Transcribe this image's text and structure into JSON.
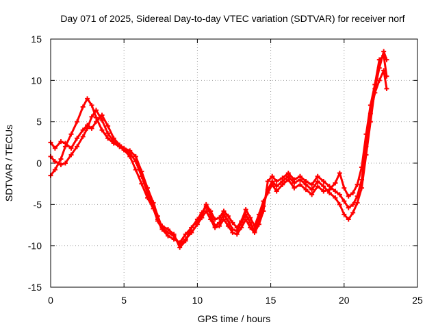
{
  "chart_data": {
    "type": "scatter",
    "title": "Day 071 of 2025, Sidereal Day-to-day VTEC variation (SDTVAR) for receiver norf",
    "xlabel": "GPS time / hours",
    "ylabel": "SDTVAR / TECUs",
    "xlim": [
      0,
      25
    ],
    "ylim": [
      -15,
      15
    ],
    "xticks": [
      0,
      5,
      10,
      15,
      20,
      25
    ],
    "yticks": [
      -15,
      -10,
      -5,
      0,
      5,
      10,
      15
    ],
    "grid": true,
    "legend": "none",
    "marker": "plus",
    "color": "#ff0000",
    "series": [
      {
        "name": "trace-1",
        "x": [
          0.0,
          0.3,
          0.7,
          1.0,
          1.4,
          1.8,
          2.2,
          2.5,
          2.8,
          3.1,
          3.5,
          3.9,
          4.3,
          4.7,
          5.0,
          5.4,
          5.8,
          6.2,
          6.6,
          7.0,
          7.3,
          7.6,
          8.0,
          8.4,
          8.8,
          9.2,
          9.6,
          10.0,
          10.3,
          10.6,
          10.9,
          11.2,
          11.5,
          11.8,
          12.1,
          12.4,
          12.7,
          13.0,
          13.3,
          13.6,
          13.9,
          14.2,
          14.5,
          14.8,
          15.1,
          15.4,
          15.8,
          16.2,
          16.6,
          17.0,
          17.4,
          17.8,
          18.2,
          18.6,
          19.0,
          19.4,
          19.7,
          20.0,
          20.3,
          20.6,
          20.9,
          21.2,
          21.5,
          21.8,
          22.1,
          22.4,
          22.7,
          22.9
        ],
        "y": [
          -1.5,
          -0.8,
          0.5,
          2.0,
          3.5,
          5.0,
          6.8,
          7.8,
          7.0,
          5.5,
          4.0,
          3.0,
          2.4,
          2.0,
          1.6,
          0.8,
          -0.8,
          -2.5,
          -4.2,
          -5.5,
          -7.0,
          -8.0,
          -8.8,
          -9.2,
          -9.6,
          -8.6,
          -7.8,
          -6.8,
          -6.0,
          -5.2,
          -6.2,
          -7.6,
          -7.2,
          -6.2,
          -7.0,
          -8.0,
          -8.2,
          -7.2,
          -6.2,
          -7.2,
          -8.2,
          -6.8,
          -5.2,
          -3.2,
          -2.2,
          -2.8,
          -2.2,
          -1.6,
          -2.4,
          -2.0,
          -2.6,
          -3.2,
          -2.2,
          -2.8,
          -3.6,
          -4.2,
          -5.0,
          -6.2,
          -6.8,
          -6.0,
          -4.8,
          -3.0,
          1.0,
          5.0,
          9.0,
          11.5,
          13.5,
          12.5
        ]
      },
      {
        "name": "trace-2",
        "x": [
          0.0,
          0.3,
          0.7,
          1.0,
          1.4,
          1.8,
          2.2,
          2.5,
          2.8,
          3.1,
          3.5,
          3.9,
          4.3,
          4.7,
          5.0,
          5.4,
          5.8,
          6.2,
          6.6,
          7.0,
          7.3,
          7.6,
          8.0,
          8.4,
          8.8,
          9.2,
          9.6,
          10.0,
          10.3,
          10.6,
          10.9,
          11.2,
          11.5,
          11.8,
          12.1,
          12.4,
          12.7,
          13.0,
          13.3,
          13.6,
          13.9,
          14.2,
          14.5,
          14.8,
          15.1,
          15.4,
          15.8,
          16.2,
          16.6,
          17.0,
          17.4,
          17.8,
          18.2,
          18.6,
          19.0,
          19.4,
          19.7,
          20.0,
          20.3,
          20.6,
          20.9,
          21.2,
          21.5,
          21.8,
          22.1,
          22.4,
          22.7,
          22.9
        ],
        "y": [
          2.5,
          1.8,
          2.6,
          2.4,
          1.8,
          3.0,
          4.0,
          4.6,
          4.2,
          5.0,
          5.8,
          4.5,
          3.0,
          2.2,
          1.8,
          1.5,
          0.8,
          -1.0,
          -3.0,
          -4.8,
          -6.4,
          -7.8,
          -8.4,
          -8.8,
          -9.8,
          -9.2,
          -8.4,
          -7.4,
          -6.6,
          -5.8,
          -6.8,
          -7.8,
          -7.6,
          -6.8,
          -7.6,
          -8.4,
          -8.6,
          -7.8,
          -6.8,
          -7.8,
          -8.4,
          -7.4,
          -5.8,
          -2.2,
          -1.6,
          -2.2,
          -1.8,
          -1.2,
          -2.0,
          -1.6,
          -2.2,
          -2.6,
          -1.6,
          -2.2,
          -2.8,
          -3.4,
          -3.8,
          -4.6,
          -5.4,
          -5.0,
          -4.0,
          -2.0,
          2.0,
          6.0,
          8.5,
          10.0,
          11.2,
          9.0
        ]
      },
      {
        "name": "trace-3",
        "x": [
          0.0,
          0.3,
          0.7,
          1.0,
          1.4,
          1.8,
          2.2,
          2.5,
          2.8,
          3.1,
          3.5,
          3.9,
          4.3,
          4.7,
          5.0,
          5.4,
          5.8,
          6.2,
          6.6,
          7.0,
          7.3,
          7.6,
          8.0,
          8.4,
          8.8,
          9.2,
          9.6,
          10.0,
          10.3,
          10.6,
          10.9,
          11.2,
          11.5,
          11.8,
          12.1,
          12.4,
          12.7,
          13.0,
          13.3,
          13.6,
          13.9,
          14.2,
          14.5,
          14.8,
          15.1,
          15.4,
          15.8,
          16.2,
          16.6,
          17.0,
          17.4,
          17.8,
          18.2,
          18.6,
          19.0,
          19.4,
          19.7,
          20.0,
          20.3,
          20.6,
          20.9,
          21.2,
          21.5,
          21.8,
          22.1,
          22.4,
          22.7,
          22.9
        ],
        "y": [
          0.8,
          0.2,
          -0.2,
          0.0,
          1.0,
          2.0,
          3.2,
          4.2,
          5.6,
          6.4,
          5.2,
          3.6,
          2.6,
          2.0,
          1.6,
          1.2,
          0.2,
          -1.6,
          -3.6,
          -5.2,
          -6.8,
          -7.6,
          -8.0,
          -8.6,
          -10.2,
          -9.4,
          -7.8,
          -7.0,
          -6.2,
          -5.0,
          -5.8,
          -6.8,
          -6.6,
          -5.8,
          -6.4,
          -7.2,
          -7.8,
          -7.0,
          -5.6,
          -6.6,
          -7.6,
          -6.2,
          -4.6,
          -3.6,
          -2.6,
          -3.4,
          -2.6,
          -2.0,
          -3.0,
          -2.6,
          -3.2,
          -3.8,
          -2.8,
          -3.4,
          -3.2,
          -2.4,
          -1.2,
          -3.0,
          -4.0,
          -3.6,
          -2.6,
          -0.5,
          3.5,
          7.0,
          9.5,
          12.5,
          13.0,
          10.5
        ]
      }
    ]
  }
}
